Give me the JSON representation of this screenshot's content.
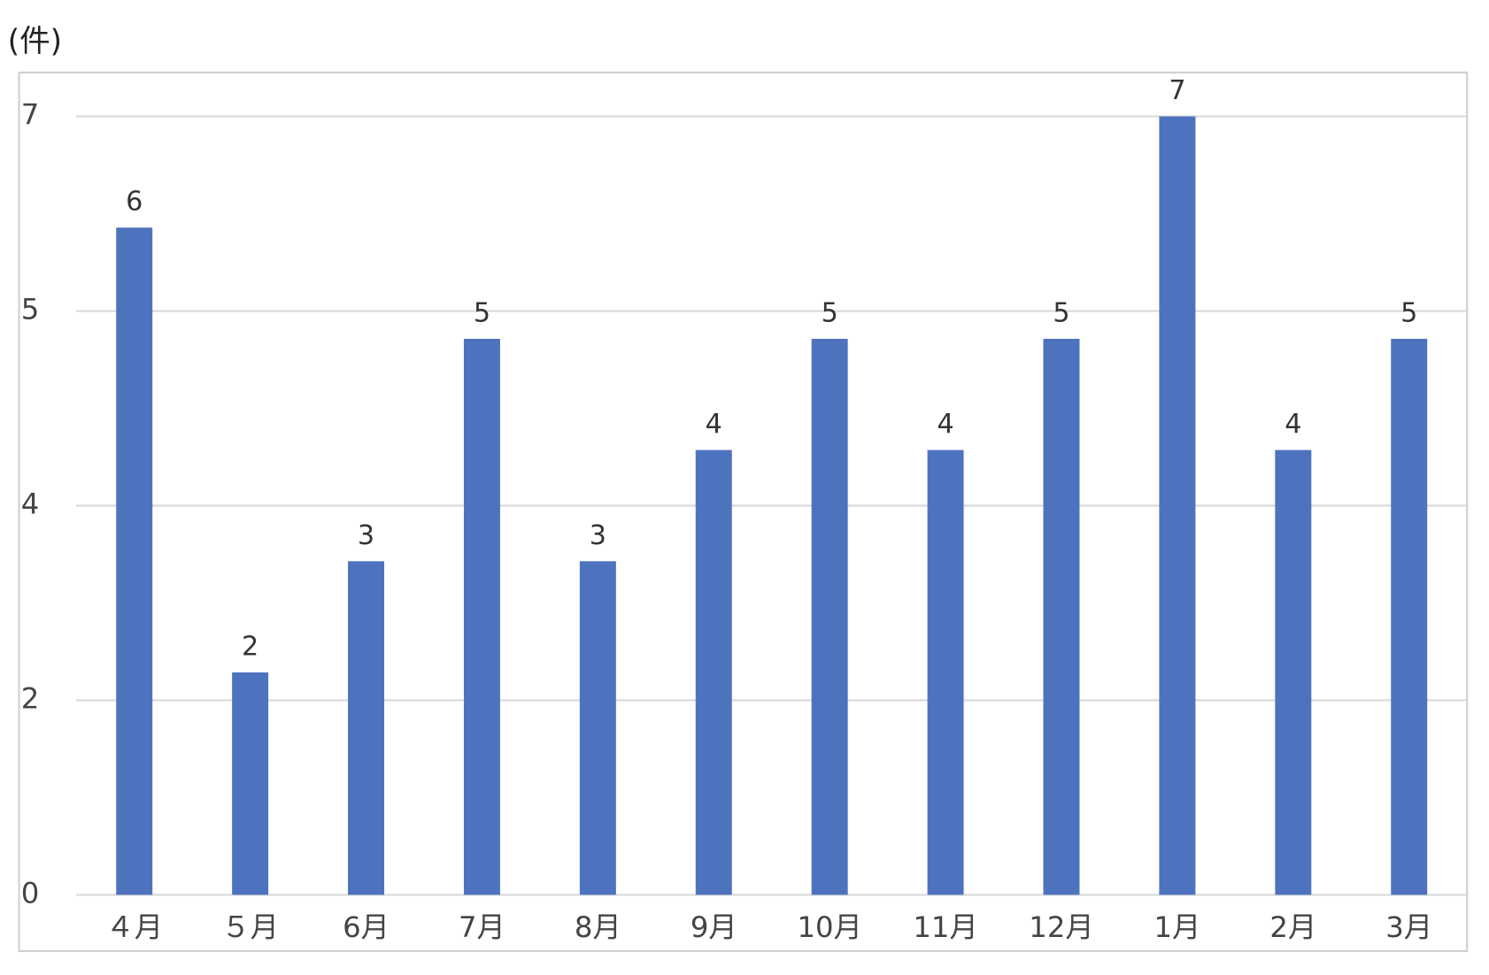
{
  "chart_data": {
    "type": "bar",
    "unit_label": "(件)",
    "categories": [
      "４月",
      "５月",
      "6月",
      "7月",
      "8月",
      "9月",
      "10月",
      "11月",
      "12月",
      "1月",
      "2月",
      "3月"
    ],
    "values": [
      6,
      2,
      3,
      5,
      3,
      4,
      5,
      4,
      5,
      7,
      4,
      5
    ],
    "color": "#4e73be",
    "ylim": [
      0,
      7
    ],
    "yticks": [
      0,
      {
        "value": 1.75,
        "label": "2"
      },
      {
        "value": 3.5,
        "label": "4"
      },
      {
        "value": 5.25,
        "label": "5"
      },
      7
    ],
    "grid": true
  }
}
